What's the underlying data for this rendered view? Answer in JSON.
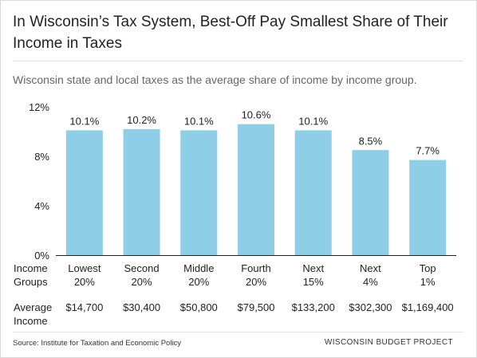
{
  "header": {
    "title_line1": "In Wisconsin’s Tax System, Best-Off Pay Smallest Share of Their",
    "title_line2": "Income in Taxes",
    "subtitle": "Wisconsin state and local taxes as the average share of income by income group."
  },
  "chart_data": {
    "type": "bar",
    "title": "In Wisconsin’s Tax System, Best-Off Pay Smallest Share of Their Income in Taxes",
    "subtitle": "Wisconsin state and local taxes as the average share of income by income group.",
    "categories": [
      [
        "Lowest",
        "20%"
      ],
      [
        "Second",
        "20%"
      ],
      [
        "Middle",
        "20%"
      ],
      [
        "Fourth",
        "20%"
      ],
      [
        "Next",
        "15%"
      ],
      [
        "Next",
        "4%"
      ],
      [
        "Top",
        "1%"
      ]
    ],
    "values": [
      10.1,
      10.2,
      10.1,
      10.6,
      10.1,
      8.5,
      7.7
    ],
    "value_labels": [
      "10.1%",
      "10.2%",
      "10.1%",
      "10.6%",
      "10.1%",
      "8.5%",
      "7.7%"
    ],
    "category_header": [
      "Income",
      "Groups"
    ],
    "secondary_row_header": [
      "Average",
      "Income"
    ],
    "secondary_row": [
      "$14,700",
      "$30,400",
      "$50,800",
      "$79,500",
      "$133,200",
      "$302,300",
      "$1,169,400"
    ],
    "yticks": [
      0,
      4,
      8,
      12
    ],
    "ytick_labels": [
      "0%",
      "4%",
      "8%",
      "12%"
    ],
    "ylim": [
      0,
      12
    ],
    "grid": false,
    "bar_color": "#8ecfe7",
    "axis_color": "#222222"
  },
  "footer": {
    "source": "Source: Institute for Taxation and Economic Policy",
    "brand": "WISCONSIN BUDGET PROJECT"
  }
}
